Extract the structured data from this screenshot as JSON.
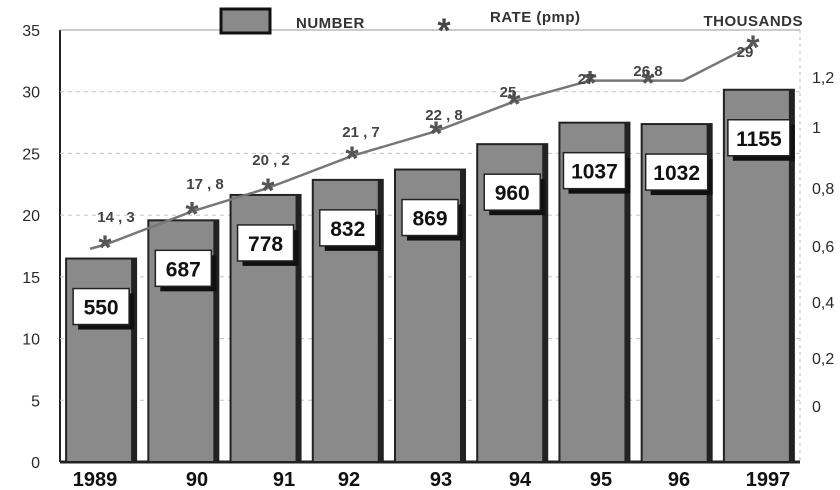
{
  "chart_data": {
    "type": "bar",
    "categories": [
      "1989",
      "90",
      "91",
      "92",
      "93",
      "94",
      "95",
      "96",
      "1997"
    ],
    "series": [
      {
        "name": "NUMBER",
        "type": "bar",
        "axis": "right",
        "values": [
          550,
          687,
          778,
          832,
          869,
          960,
          1037,
          1032,
          1155
        ],
        "labels": [
          "550",
          "687",
          "778",
          "832",
          "869",
          "960",
          "1037",
          "1032",
          "1155"
        ]
      },
      {
        "name": "RATE (pmp)",
        "type": "line",
        "axis": "left",
        "values": [
          14.3,
          17.8,
          20.2,
          21.7,
          22.8,
          25,
          27,
          26.8,
          29
        ],
        "line_values": [
          17.6,
          20.3,
          22.2,
          24.8,
          26.8,
          29.2,
          30.9,
          30.9,
          33.8
        ],
        "labels": [
          "14 , 3",
          "17 , 8",
          "20 , 2",
          "21 , 7",
          "22 , 8",
          "25",
          "27",
          "26.8",
          "29"
        ]
      }
    ],
    "left_axis": {
      "ylim": [
        0,
        35
      ],
      "ticks": [
        "0",
        "5",
        "10",
        "15",
        "20",
        "25",
        "30",
        "35"
      ]
    },
    "right_axis": {
      "label": "THOUSANDS",
      "ylim": [
        0,
        1.3
      ],
      "ticks": [
        "0",
        "0,2",
        "0,4",
        "0,6",
        "0,8",
        "1",
        "1,2"
      ]
    },
    "grid": true,
    "legend": {
      "placement": "top",
      "bar_label": "NUMBER",
      "line_label": "RATE (pmp)",
      "line_marker": "*"
    },
    "colors": {
      "bar": "#8a8a8a",
      "bar_dark": "#222222",
      "line": "#777777",
      "marker": "#555555",
      "label_box": "#ffffff"
    }
  }
}
